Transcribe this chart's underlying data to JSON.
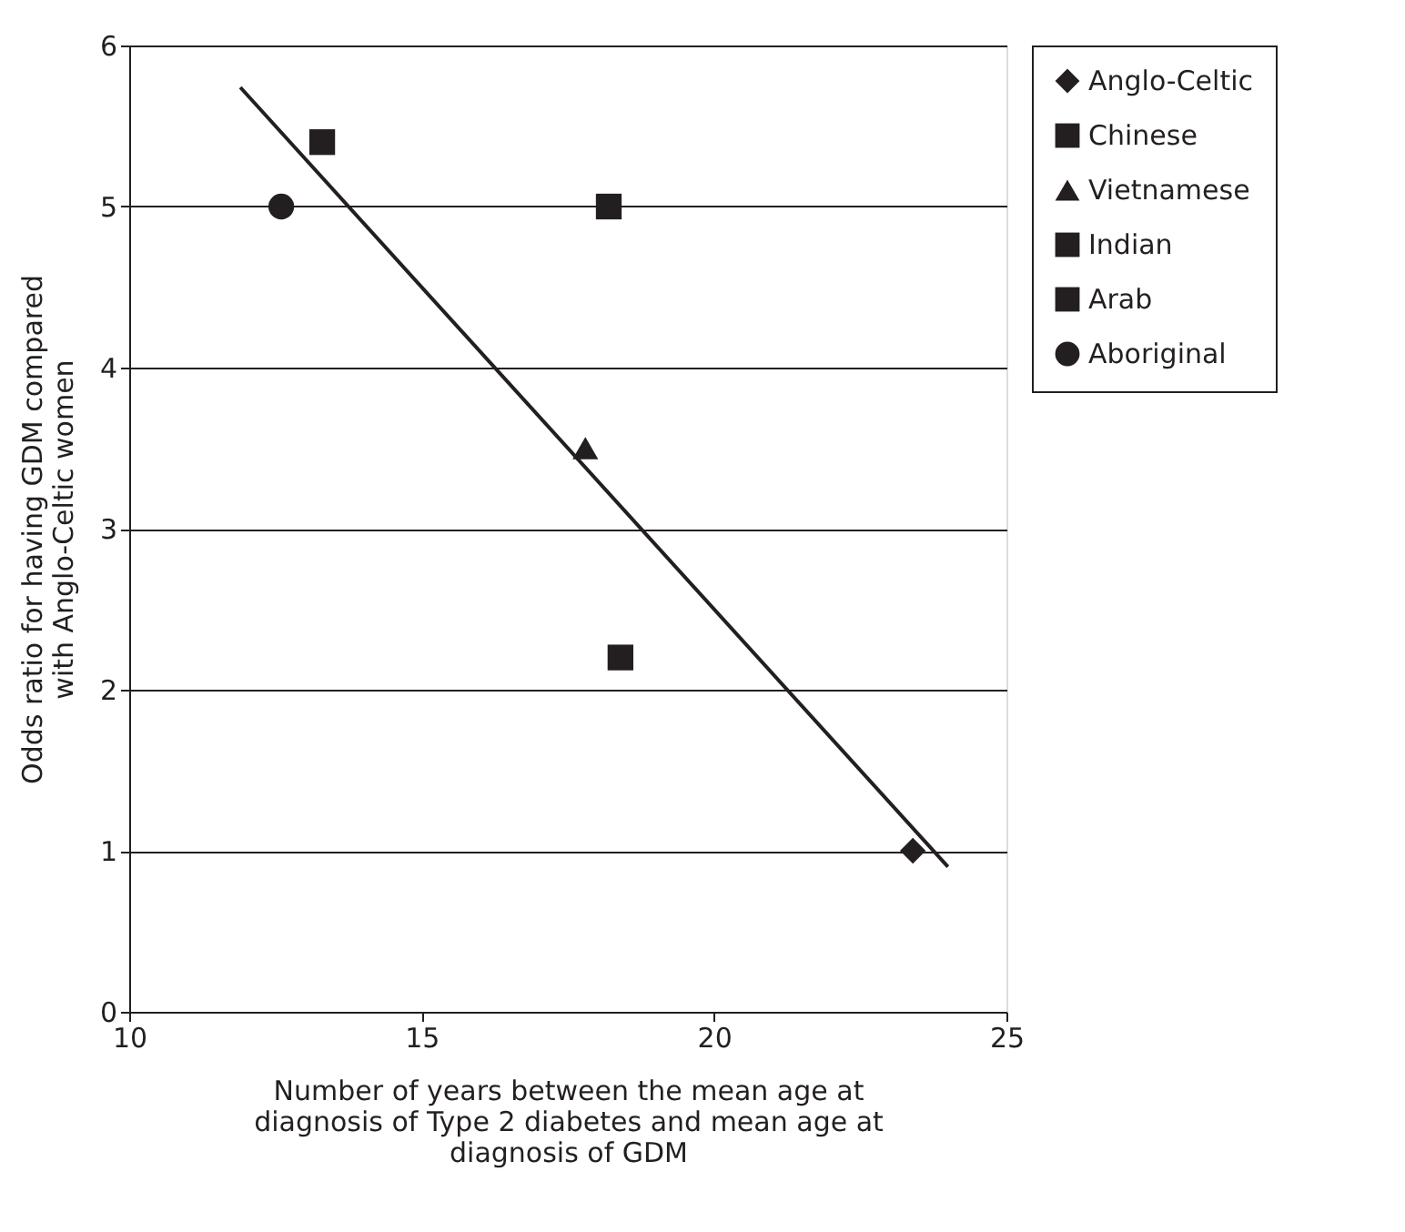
{
  "chart_data": {
    "type": "scatter",
    "xlabel": "Number of years between the mean age at\ndiagnosis of Type 2 diabetes and mean age at\ndiagnosis of GDM",
    "ylabel": "Odds ratio for having GDM compared\nwith Anglo-Celtic women",
    "xlim": [
      10,
      25
    ],
    "xticks": [
      10,
      15,
      20,
      25
    ],
    "ylim": [
      0,
      6
    ],
    "yticks": [
      0,
      1,
      2,
      3,
      4,
      5,
      6
    ],
    "grid": "y",
    "legend": "right",
    "series": [
      {
        "name": "Anglo-Celtic",
        "color": "#231f20",
        "marker": "diamond",
        "x": [
          23.4
        ],
        "values": [
          1.0
        ]
      },
      {
        "name": "Chinese",
        "color": "#231f20",
        "marker": "square",
        "x": [
          13.3
        ],
        "values": [
          5.4
        ]
      },
      {
        "name": "Vietnamese",
        "color": "#231f20",
        "marker": "triangle",
        "x": [
          17.8
        ],
        "values": [
          3.5
        ]
      },
      {
        "name": "Indian",
        "color": "#231f20",
        "marker": "square",
        "x": [
          18.2
        ],
        "values": [
          5.0
        ]
      },
      {
        "name": "Arab",
        "color": "#231f20",
        "marker": "square",
        "x": [
          18.4
        ],
        "values": [
          2.2
        ]
      },
      {
        "name": "Aboriginal",
        "color": "#231f20",
        "marker": "circle",
        "x": [
          12.6
        ],
        "values": [
          5.0
        ]
      },
      {
        "type": "line",
        "color": "#231f20",
        "marker": "none",
        "x": [
          11.9,
          24.0
        ],
        "values": [
          5.74,
          0.9
        ]
      }
    ]
  }
}
